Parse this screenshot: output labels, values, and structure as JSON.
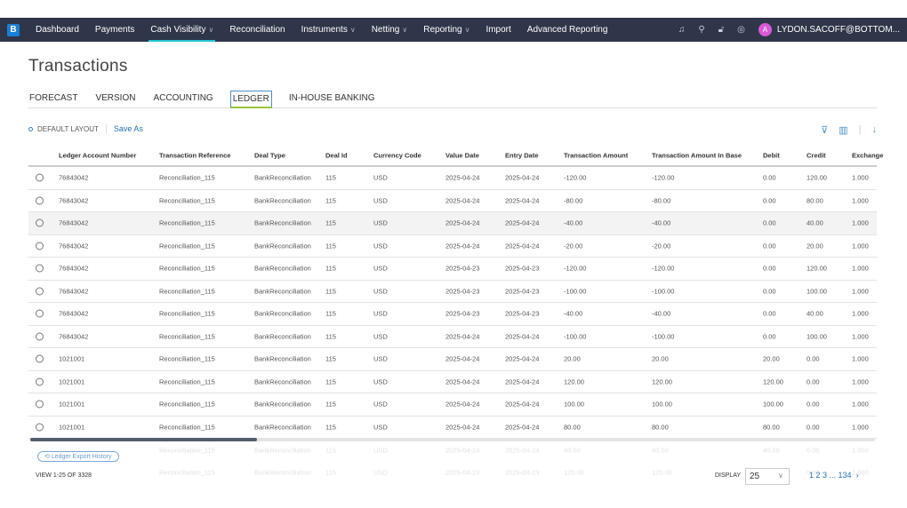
{
  "nav": {
    "logo": "B",
    "items": [
      {
        "label": "Dashboard"
      },
      {
        "label": "Payments"
      },
      {
        "label": "Cash Visibility",
        "dropdown": true,
        "active": true
      },
      {
        "label": "Reconciliation"
      },
      {
        "label": "Instruments",
        "dropdown": true
      },
      {
        "label": "Netting",
        "dropdown": true
      },
      {
        "label": "Reporting",
        "dropdown": true
      },
      {
        "label": "Import"
      },
      {
        "label": "Advanced Reporting"
      }
    ],
    "icons": [
      "bell-icon",
      "search-icon",
      "lock-icon",
      "settings-icon"
    ],
    "avatar": "A",
    "user": "LYDON.SACOFF@BOTTOM..."
  },
  "page": {
    "title": "Transactions"
  },
  "tabs": [
    {
      "label": "FORECAST"
    },
    {
      "label": "VERSION"
    },
    {
      "label": "ACCOUNTING"
    },
    {
      "label": "LEDGER",
      "active": true
    },
    {
      "label": "IN-HOUSE BANKING"
    }
  ],
  "layout": {
    "name": "DEFAULT LAYOUT",
    "save_as": "Save As"
  },
  "table": {
    "columns": [
      "Ledger Account Number",
      "Transaction Reference",
      "Deal Type",
      "Deal Id",
      "Currency Code",
      "Value Date",
      "Entry Date",
      "Transaction Amount",
      "Transaction Amount In Base",
      "Debit",
      "Credit",
      "Exchange"
    ],
    "rows": [
      [
        "76843042",
        "Reconciliation_115",
        "BankReconciliation",
        "115",
        "USD",
        "2025-04-24",
        "2025-04-24",
        "-120.00",
        "-120.00",
        "0.00",
        "120.00",
        "1.000"
      ],
      [
        "76843042",
        "Reconciliation_115",
        "BankReconciliation",
        "115",
        "USD",
        "2025-04-24",
        "2025-04-24",
        "-80.00",
        "-80.00",
        "0.00",
        "80.00",
        "1.000"
      ],
      [
        "76843042",
        "Reconciliation_115",
        "BankReconciliation",
        "115",
        "USD",
        "2025-04-24",
        "2025-04-24",
        "-40.00",
        "-40.00",
        "0.00",
        "40.00",
        "1.000"
      ],
      [
        "76843042",
        "Reconciliation_115",
        "BankReconciliation",
        "115",
        "USD",
        "2025-04-24",
        "2025-04-24",
        "-20.00",
        "-20.00",
        "0.00",
        "20.00",
        "1.000"
      ],
      [
        "76843042",
        "Reconciliation_115",
        "BankReconciliation",
        "115",
        "USD",
        "2025-04-23",
        "2025-04-23",
        "-120.00",
        "-120.00",
        "0.00",
        "120.00",
        "1.000"
      ],
      [
        "76843042",
        "Reconciliation_115",
        "BankReconciliation",
        "115",
        "USD",
        "2025-04-23",
        "2025-04-23",
        "-100.00",
        "-100.00",
        "0.00",
        "100.00",
        "1.000"
      ],
      [
        "76843042",
        "Reconciliation_115",
        "BankReconciliation",
        "115",
        "USD",
        "2025-04-23",
        "2025-04-23",
        "-40.00",
        "-40.00",
        "0.00",
        "40.00",
        "1.000"
      ],
      [
        "76843042",
        "Reconciliation_115",
        "BankReconciliation",
        "115",
        "USD",
        "2025-04-24",
        "2025-04-24",
        "-100.00",
        "-100.00",
        "0.00",
        "100.00",
        "1.000"
      ],
      [
        "1021001",
        "Reconciliation_115",
        "BankReconciliation",
        "115",
        "USD",
        "2025-04-24",
        "2025-04-24",
        "20.00",
        "20.00",
        "20.00",
        "0.00",
        "1.000"
      ],
      [
        "1021001",
        "Reconciliation_115",
        "BankReconciliation",
        "115",
        "USD",
        "2025-04-24",
        "2025-04-24",
        "120.00",
        "120.00",
        "120.00",
        "0.00",
        "1.000"
      ],
      [
        "1021001",
        "Reconciliation_115",
        "BankReconciliation",
        "115",
        "USD",
        "2025-04-24",
        "2025-04-24",
        "100.00",
        "100.00",
        "100.00",
        "0.00",
        "1.000"
      ],
      [
        "1021001",
        "Reconciliation_115",
        "BankReconciliation",
        "115",
        "USD",
        "2025-04-24",
        "2025-04-24",
        "80.00",
        "80.00",
        "80.00",
        "0.00",
        "1.000"
      ],
      [
        "",
        "Reconciliation_115",
        "BankReconciliation",
        "115",
        "USD",
        "2025-04-24",
        "2025-04-24",
        "40.00",
        "40.00",
        "40.00",
        "0.00",
        "1.000"
      ],
      [
        "",
        "Reconciliation_115",
        "BankReconciliation",
        "115",
        "USD",
        "2025-04-23",
        "2025-04-23",
        "120.00",
        "120.00",
        "120.00",
        "0.00",
        "1.000"
      ]
    ]
  },
  "footer": {
    "history": "Ledger Export History",
    "view": "VIEW 1-25 OF 3328",
    "display_label": "DISPLAY",
    "page_size": "25",
    "pages": "1 2 3 ... 134"
  }
}
